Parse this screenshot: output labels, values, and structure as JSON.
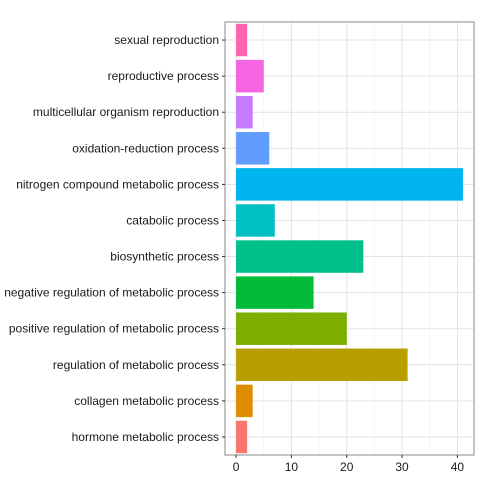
{
  "chart_data": {
    "type": "bar",
    "orientation": "horizontal",
    "title": "",
    "xlabel": "",
    "ylabel": "",
    "xlim": [
      -2,
      43
    ],
    "x_ticks": [
      0,
      10,
      20,
      30,
      40
    ],
    "grid": true,
    "legend": "none",
    "categories": [
      "hormone metabolic process",
      "collagen metabolic process",
      "regulation of metabolic process",
      "positive regulation of metabolic process",
      "negative regulation of metabolic process",
      "biosynthetic process",
      "catabolic process",
      "nitrogen compound metabolic process",
      "oxidation-reduction process",
      "multicellular organism reproduction",
      "reproductive process",
      "sexual reproduction"
    ],
    "values": [
      2,
      3,
      31,
      20,
      14,
      23,
      7,
      41,
      6,
      3,
      5,
      2
    ],
    "colors": [
      "#F8766D",
      "#DE8C00",
      "#B79F00",
      "#7CAE00",
      "#00BA38",
      "#00C08B",
      "#00BFC4",
      "#00B4F0",
      "#619CFF",
      "#C77CFF",
      "#F564E3",
      "#FF64B0"
    ]
  }
}
